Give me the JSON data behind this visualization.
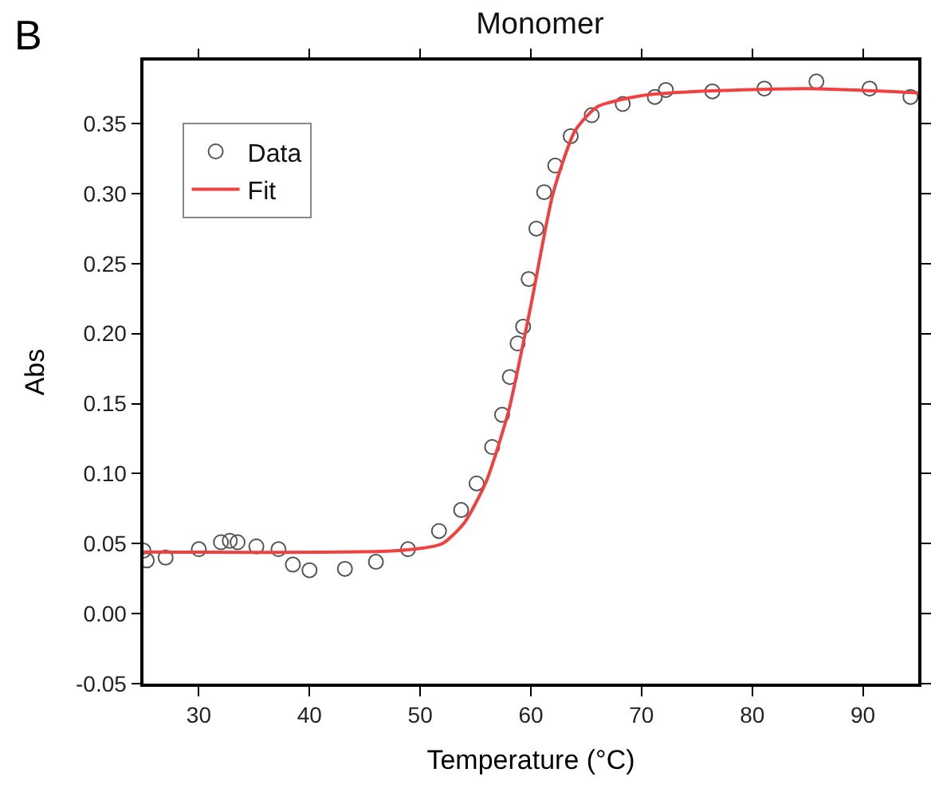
{
  "chart_data": {
    "type": "scatter",
    "title": "Monomer",
    "xlabel": "Temperature (°C)",
    "ylabel": "Abs",
    "annotations": [
      "B"
    ],
    "xlim": [
      25,
      95
    ],
    "xticks": [
      30,
      40,
      50,
      60,
      70,
      80,
      90
    ],
    "ylim": [
      -0.05,
      0.395
    ],
    "yticks": [
      -0.05,
      {
        "value": 0,
        "label": "0.00"
      },
      0.05,
      {
        "value": 0.1,
        "label": "0.10"
      },
      0.15,
      {
        "value": 0.2,
        "label": "0.20"
      },
      0.25,
      {
        "value": 0.3,
        "label": "0.30"
      },
      0.35
    ],
    "legend": "top left",
    "series": [
      {
        "name": "Data",
        "marker": "circle",
        "color": "#555555",
        "x": [
          25,
          25.3,
          27,
          30,
          32,
          32.8,
          33.5,
          35.2,
          37.2,
          38.5,
          40,
          43.2,
          46,
          48.9,
          51.7,
          53.7,
          55.1,
          56.5,
          57.4,
          58.1,
          58.8,
          59.3,
          59.8,
          60.5,
          61.2,
          62.2,
          63.6,
          65.5,
          68.3,
          71.2,
          72.2,
          76.4,
          81.1,
          85.8,
          90.6,
          94.3
        ],
        "values": [
          0.045,
          0.038,
          0.04,
          0.046,
          0.051,
          0.052,
          0.051,
          0.048,
          0.046,
          0.035,
          0.031,
          0.032,
          0.037,
          0.046,
          0.059,
          0.074,
          0.093,
          0.119,
          0.142,
          0.169,
          0.193,
          0.205,
          0.239,
          0.275,
          0.301,
          0.32,
          0.341,
          0.356,
          0.364,
          0.369,
          0.374,
          0.373,
          0.375,
          0.38,
          0.375,
          0.369
        ]
      },
      {
        "name": "Fit",
        "type": "line",
        "marker": "none",
        "line_style": "solid",
        "color": "#f04040",
        "x": [
          25,
          48,
          52,
          54,
          56,
          58,
          60,
          62,
          64,
          66,
          70,
          75,
          85,
          95
        ],
        "values": [
          0.044,
          0.045,
          0.05,
          0.065,
          0.095,
          0.145,
          0.22,
          0.3,
          0.345,
          0.362,
          0.37,
          0.373,
          0.375,
          0.372
        ]
      }
    ]
  }
}
